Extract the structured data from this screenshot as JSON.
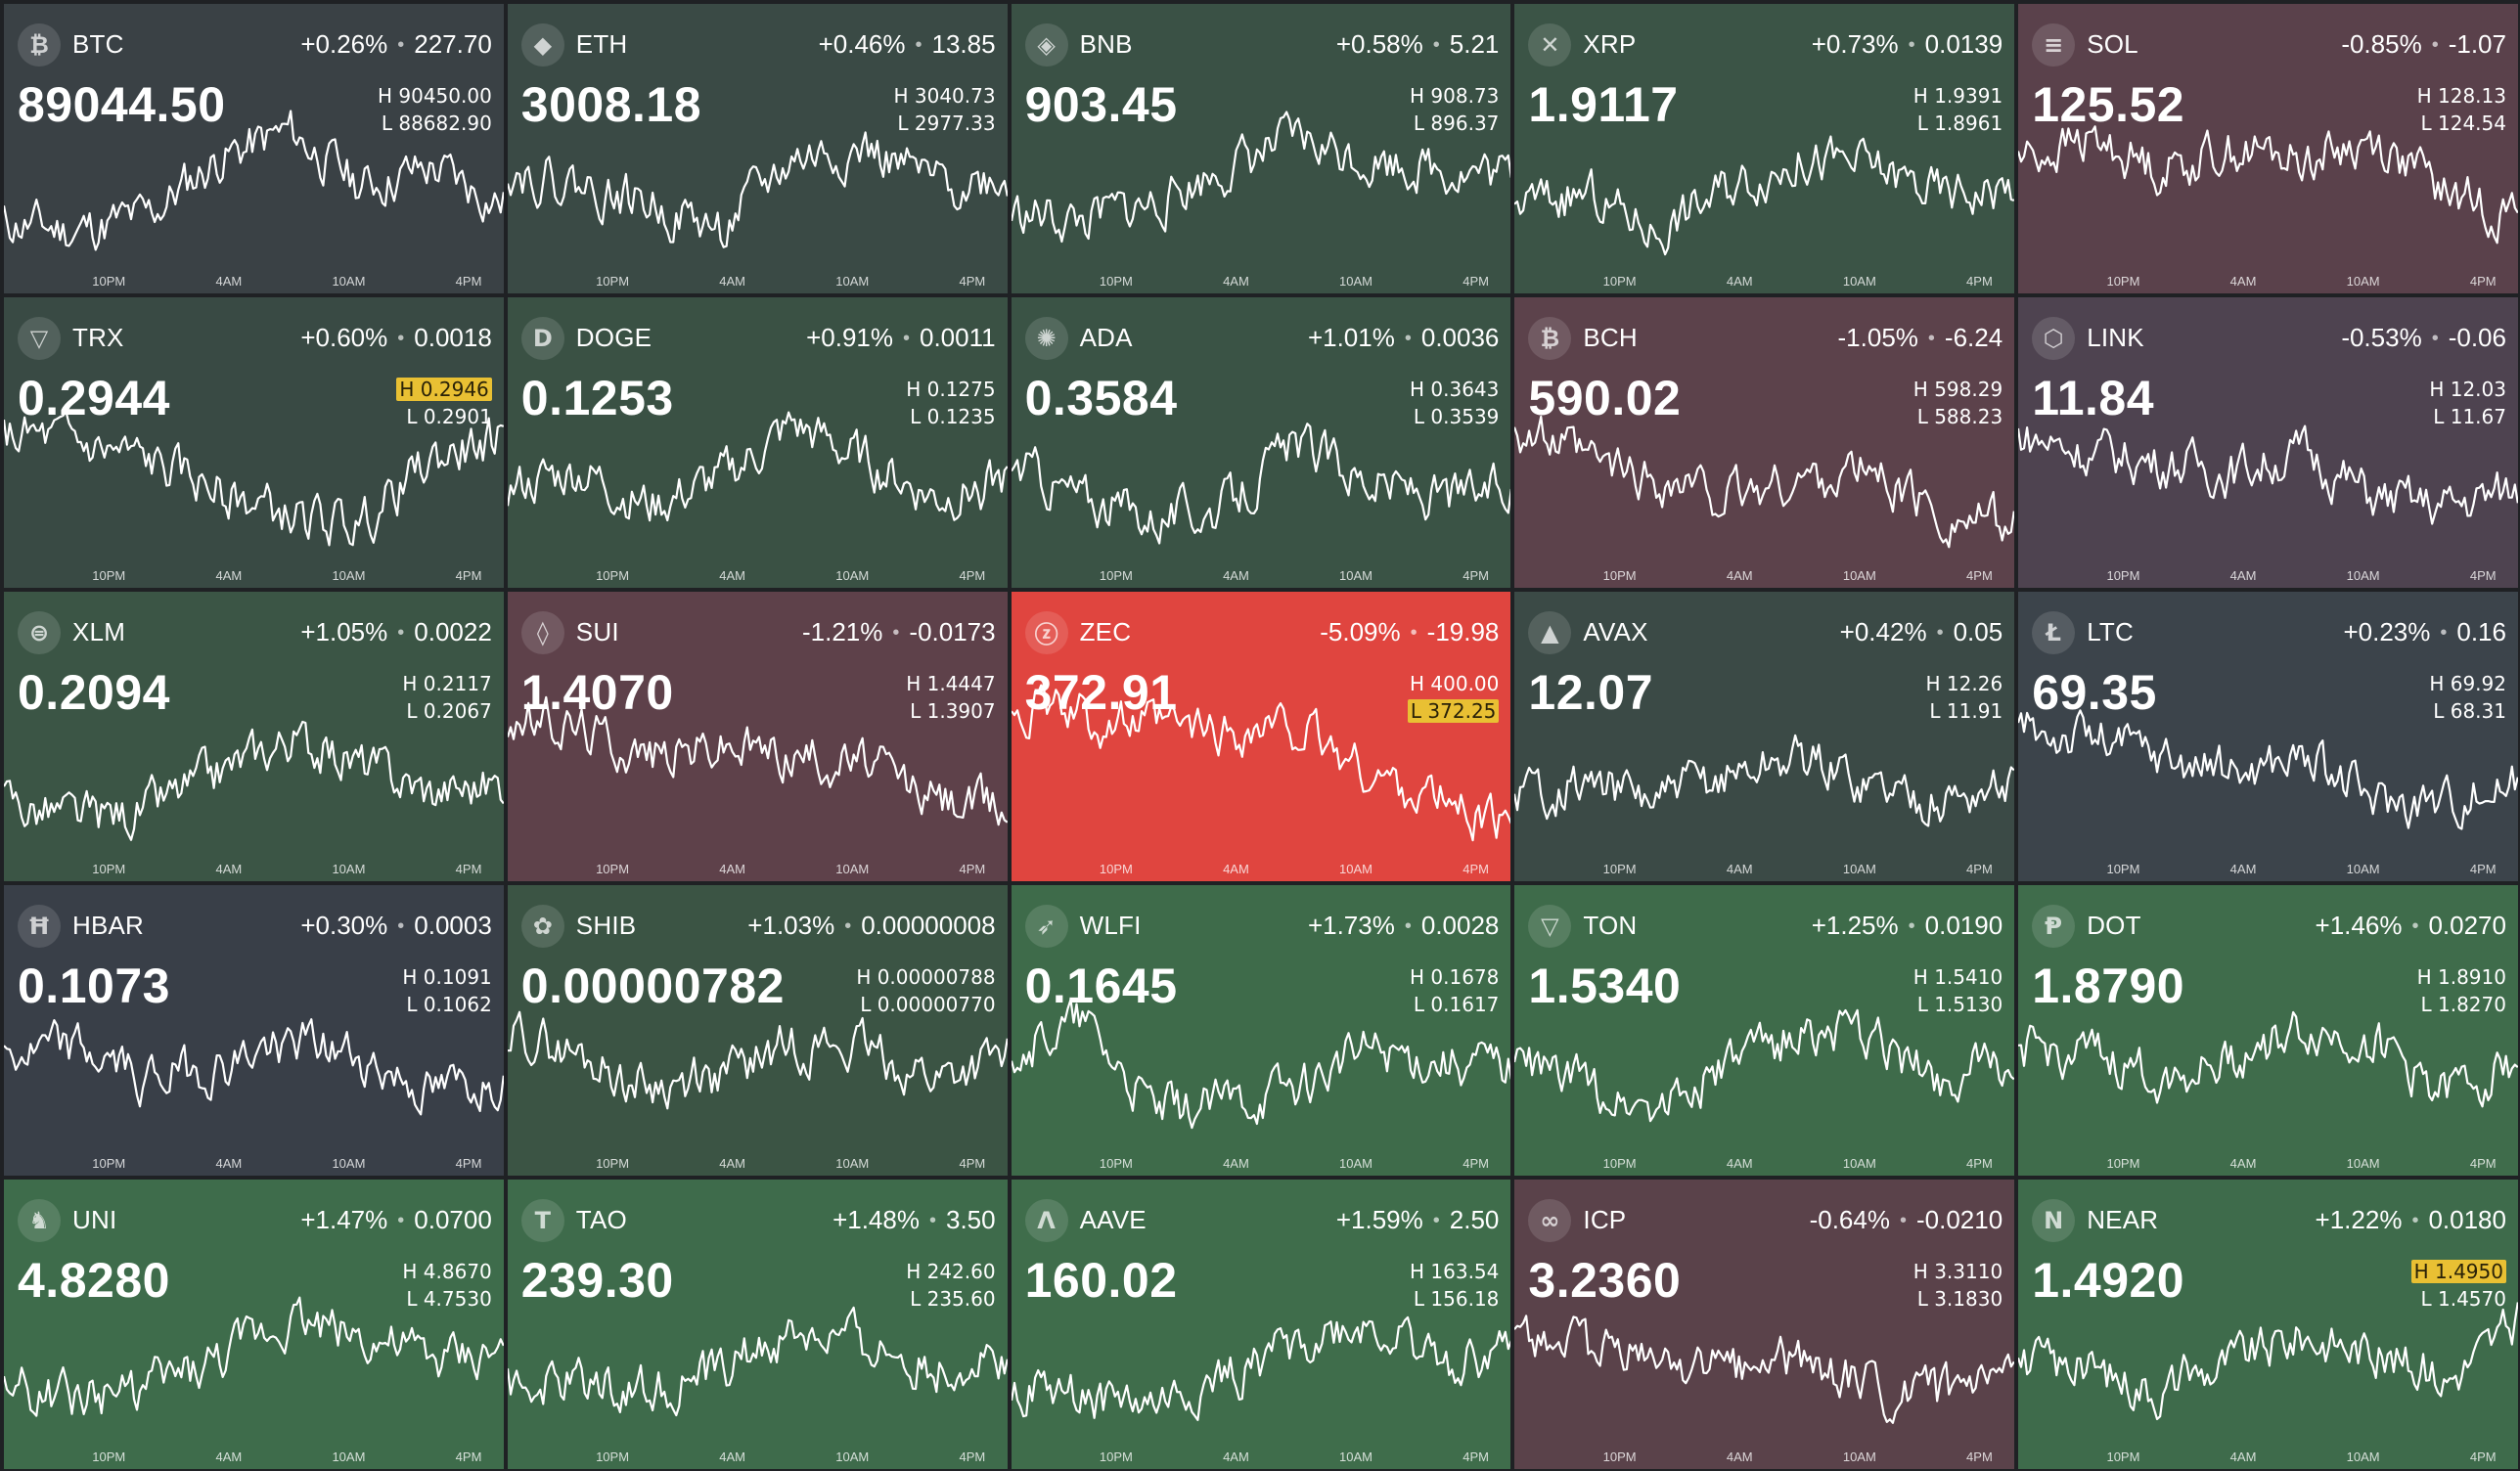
{
  "time_labels": [
    "10PM",
    "4AM",
    "10AM",
    "4PM"
  ],
  "colors": {
    "neutral": "#3a3f48",
    "up_mild": "#3a5345",
    "up_strong": "#3e6e4c",
    "down_mild": "#5a4149",
    "down_strong": "#e0453f",
    "highlight": "#e9c033"
  },
  "tiles": [
    {
      "symbol": "BTC",
      "icon": "bitcoin-icon",
      "glyph": "₿",
      "change_pct": "+0.26%",
      "change_abs": "227.70",
      "price": "89044.50",
      "high": "H 90450.00",
      "low": "L 88682.90",
      "hit": "",
      "bg": "#3a4145",
      "seed": 11,
      "trend": [
        0.25,
        0.2,
        0.28,
        0.6,
        0.75,
        0.45,
        0.55,
        0.35
      ]
    },
    {
      "symbol": "ETH",
      "icon": "ethereum-icon",
      "glyph": "◆",
      "change_pct": "+0.46%",
      "change_abs": "13.85",
      "price": "3008.18",
      "high": "H 3040.73",
      "low": "L 2977.33",
      "hit": "",
      "bg": "#3a4a45",
      "seed": 22,
      "trend": [
        0.55,
        0.45,
        0.35,
        0.2,
        0.6,
        0.65,
        0.45,
        0.5
      ]
    },
    {
      "symbol": "BNB",
      "icon": "bnb-icon",
      "glyph": "◈",
      "change_pct": "+0.58%",
      "change_abs": "5.21",
      "price": "903.45",
      "high": "H 908.73",
      "low": "L 896.37",
      "hit": "",
      "bg": "#3a5145",
      "seed": 33,
      "trend": [
        0.3,
        0.25,
        0.35,
        0.55,
        0.7,
        0.6,
        0.55,
        0.5
      ]
    },
    {
      "symbol": "XRP",
      "icon": "xrp-icon",
      "glyph": "✕",
      "change_pct": "+0.73%",
      "change_abs": "0.0139",
      "price": "1.9117",
      "high": "H 1.9391",
      "low": "L 1.8961",
      "hit": "",
      "bg": "#3b5446",
      "seed": 44,
      "trend": [
        0.35,
        0.4,
        0.2,
        0.45,
        0.6,
        0.55,
        0.4,
        0.45
      ]
    },
    {
      "symbol": "SOL",
      "icon": "solana-icon",
      "glyph": "≡",
      "change_pct": "-0.85%",
      "change_abs": "-1.07",
      "price": "125.52",
      "high": "H 128.13",
      "low": "L 124.54",
      "hit": "",
      "bg": "#5a414b",
      "seed": 55,
      "trend": [
        0.6,
        0.7,
        0.55,
        0.65,
        0.6,
        0.7,
        0.4,
        0.3
      ]
    },
    {
      "symbol": "TRX",
      "icon": "tron-icon",
      "glyph": "▽",
      "change_pct": "+0.60%",
      "change_abs": "0.0018",
      "price": "0.2944",
      "high": "H 0.2946",
      "low": "L 0.2901",
      "hit": "high",
      "bg": "#394a44",
      "seed": 66,
      "trend": [
        0.7,
        0.65,
        0.55,
        0.4,
        0.25,
        0.2,
        0.55,
        0.7
      ]
    },
    {
      "symbol": "DOGE",
      "icon": "doge-icon",
      "glyph": "D",
      "change_pct": "+0.91%",
      "change_abs": "0.0011",
      "price": "0.1253",
      "high": "H 0.1275",
      "low": "L 0.1235",
      "hit": "",
      "bg": "#3a5144",
      "seed": 77,
      "trend": [
        0.4,
        0.5,
        0.3,
        0.45,
        0.75,
        0.55,
        0.35,
        0.45
      ]
    },
    {
      "symbol": "ADA",
      "icon": "cardano-icon",
      "glyph": "✺",
      "change_pct": "+1.01%",
      "change_abs": "0.0036",
      "price": "0.3584",
      "high": "H 0.3643",
      "low": "L 0.3539",
      "hit": "",
      "bg": "#3a5345",
      "seed": 88,
      "trend": [
        0.55,
        0.35,
        0.25,
        0.3,
        0.65,
        0.45,
        0.35,
        0.4
      ]
    },
    {
      "symbol": "BCH",
      "icon": "bitcoin-cash-icon",
      "glyph": "₿",
      "change_pct": "-1.05%",
      "change_abs": "-6.24",
      "price": "590.02",
      "high": "H 598.29",
      "low": "L 588.23",
      "hit": "",
      "bg": "#5c424b",
      "seed": 99,
      "trend": [
        0.75,
        0.55,
        0.45,
        0.35,
        0.45,
        0.5,
        0.25,
        0.2
      ]
    },
    {
      "symbol": "LINK",
      "icon": "chainlink-icon",
      "glyph": "⬡",
      "change_pct": "-0.53%",
      "change_abs": "-0.06",
      "price": "11.84",
      "high": "H 12.03",
      "low": "L 11.67",
      "hit": "",
      "bg": "#4e4350",
      "seed": 110,
      "trend": [
        0.7,
        0.6,
        0.55,
        0.5,
        0.6,
        0.35,
        0.3,
        0.4
      ]
    },
    {
      "symbol": "XLM",
      "icon": "stellar-icon",
      "glyph": "⊜",
      "change_pct": "+1.05%",
      "change_abs": "0.0022",
      "price": "0.2094",
      "high": "H 0.2117",
      "low": "L 0.2067",
      "hit": "",
      "bg": "#3b5545",
      "seed": 121,
      "trend": [
        0.3,
        0.2,
        0.25,
        0.45,
        0.65,
        0.5,
        0.35,
        0.4
      ]
    },
    {
      "symbol": "SUI",
      "icon": "sui-icon",
      "glyph": "◊",
      "change_pct": "-1.21%",
      "change_abs": "-0.0173",
      "price": "1.4070",
      "high": "H 1.4447",
      "low": "L 1.3907",
      "hit": "",
      "bg": "#5e414a",
      "seed": 132,
      "trend": [
        0.75,
        0.7,
        0.55,
        0.6,
        0.55,
        0.5,
        0.3,
        0.25
      ]
    },
    {
      "symbol": "ZEC",
      "icon": "zcash-icon",
      "glyph": "ⓩ",
      "change_pct": "-5.09%",
      "change_abs": "-19.98",
      "price": "372.91",
      "high": "H 400.00",
      "low": "L 372.25",
      "hit": "low",
      "bg": "#e0453f",
      "seed": 143,
      "trend": [
        0.85,
        0.75,
        0.7,
        0.68,
        0.7,
        0.45,
        0.3,
        0.15
      ]
    },
    {
      "symbol": "AVAX",
      "icon": "avalanche-icon",
      "glyph": "▲",
      "change_pct": "+0.42%",
      "change_abs": "0.05",
      "price": "12.07",
      "high": "H 12.26",
      "low": "L 11.91",
      "hit": "",
      "bg": "#3b4a46",
      "seed": 154,
      "trend": [
        0.35,
        0.4,
        0.3,
        0.45,
        0.55,
        0.4,
        0.3,
        0.4
      ]
    },
    {
      "symbol": "LTC",
      "icon": "litecoin-icon",
      "glyph": "Ł",
      "change_pct": "+0.23%",
      "change_abs": "0.16",
      "price": "69.35",
      "high": "H 69.92",
      "low": "L 68.31",
      "hit": "",
      "bg": "#3c444b",
      "seed": 165,
      "trend": [
        0.7,
        0.65,
        0.55,
        0.45,
        0.55,
        0.3,
        0.3,
        0.4
      ]
    },
    {
      "symbol": "HBAR",
      "icon": "hedera-icon",
      "glyph": "Ħ",
      "change_pct": "+0.30%",
      "change_abs": "0.0003",
      "price": "0.1073",
      "high": "H 0.1091",
      "low": "L 0.1062",
      "hit": "",
      "bg": "#393f48",
      "seed": 176,
      "trend": [
        0.5,
        0.55,
        0.4,
        0.45,
        0.6,
        0.5,
        0.3,
        0.4
      ]
    },
    {
      "symbol": "SHIB",
      "icon": "shiba-icon",
      "glyph": "✿",
      "change_pct": "+1.03%",
      "change_abs": "0.00000008",
      "price": "0.00000782",
      "high": "H 0.00000788",
      "low": "L 0.00000770",
      "hit": "",
      "bg": "#3b5444",
      "seed": 187,
      "trend": [
        0.65,
        0.5,
        0.35,
        0.4,
        0.6,
        0.55,
        0.4,
        0.5
      ]
    },
    {
      "symbol": "WLFI",
      "icon": "wlfi-icon",
      "glyph": "➶",
      "change_pct": "+1.73%",
      "change_abs": "0.0028",
      "price": "0.1645",
      "high": "H 0.1678",
      "low": "L 0.1617",
      "hit": "",
      "bg": "#3e6b4a",
      "seed": 198,
      "trend": [
        0.55,
        0.7,
        0.2,
        0.25,
        0.35,
        0.55,
        0.5,
        0.45
      ]
    },
    {
      "symbol": "TON",
      "icon": "ton-icon",
      "glyph": "▽",
      "change_pct": "+1.25%",
      "change_abs": "0.0190",
      "price": "1.5340",
      "high": "H 1.5410",
      "low": "L 1.5130",
      "hit": "",
      "bg": "#3e6b4a",
      "seed": 209,
      "trend": [
        0.5,
        0.35,
        0.25,
        0.45,
        0.65,
        0.6,
        0.4,
        0.5
      ]
    },
    {
      "symbol": "DOT",
      "icon": "polkadot-icon",
      "glyph": "Ᵽ",
      "change_pct": "+1.46%",
      "change_abs": "0.0270",
      "price": "1.8790",
      "high": "H 1.8910",
      "low": "L 1.8270",
      "hit": "",
      "bg": "#3f6c4b",
      "seed": 220,
      "trend": [
        0.55,
        0.5,
        0.4,
        0.5,
        0.65,
        0.6,
        0.3,
        0.5
      ]
    },
    {
      "symbol": "UNI",
      "icon": "uniswap-icon",
      "glyph": "♞",
      "change_pct": "+1.47%",
      "change_abs": "0.0700",
      "price": "4.8280",
      "high": "H 4.8670",
      "low": "L 4.7530",
      "hit": "",
      "bg": "#3e6c4b",
      "seed": 231,
      "trend": [
        0.3,
        0.25,
        0.3,
        0.45,
        0.7,
        0.6,
        0.45,
        0.5
      ]
    },
    {
      "symbol": "TAO",
      "icon": "bittensor-icon",
      "glyph": "T",
      "change_pct": "+1.48%",
      "change_abs": "3.50",
      "price": "239.30",
      "high": "H 242.60",
      "low": "L 235.60",
      "hit": "",
      "bg": "#3e6b4b",
      "seed": 242,
      "trend": [
        0.3,
        0.35,
        0.3,
        0.4,
        0.6,
        0.55,
        0.4,
        0.5
      ]
    },
    {
      "symbol": "AAVE",
      "icon": "aave-icon",
      "glyph": "Λ",
      "change_pct": "+1.59%",
      "change_abs": "2.50",
      "price": "160.02",
      "high": "H 163.54",
      "low": "L 156.18",
      "hit": "",
      "bg": "#3f6d4b",
      "seed": 253,
      "trend": [
        0.3,
        0.25,
        0.2,
        0.35,
        0.55,
        0.65,
        0.45,
        0.5
      ]
    },
    {
      "symbol": "ICP",
      "icon": "icp-icon",
      "glyph": "∞",
      "change_pct": "-0.64%",
      "change_abs": "-0.0210",
      "price": "3.2360",
      "high": "H 3.3110",
      "low": "L 3.1830",
      "hit": "",
      "bg": "#5a424a",
      "seed": 264,
      "trend": [
        0.65,
        0.5,
        0.45,
        0.4,
        0.45,
        0.3,
        0.25,
        0.3
      ]
    },
    {
      "symbol": "NEAR",
      "icon": "near-icon",
      "glyph": "Ν",
      "change_pct": "+1.22%",
      "change_abs": "0.0180",
      "price": "1.4920",
      "high": "H 1.4950",
      "low": "L 1.4570",
      "hit": "high",
      "bg": "#3e6b4b",
      "seed": 275,
      "trend": [
        0.45,
        0.4,
        0.3,
        0.45,
        0.6,
        0.5,
        0.35,
        0.65
      ]
    }
  ]
}
